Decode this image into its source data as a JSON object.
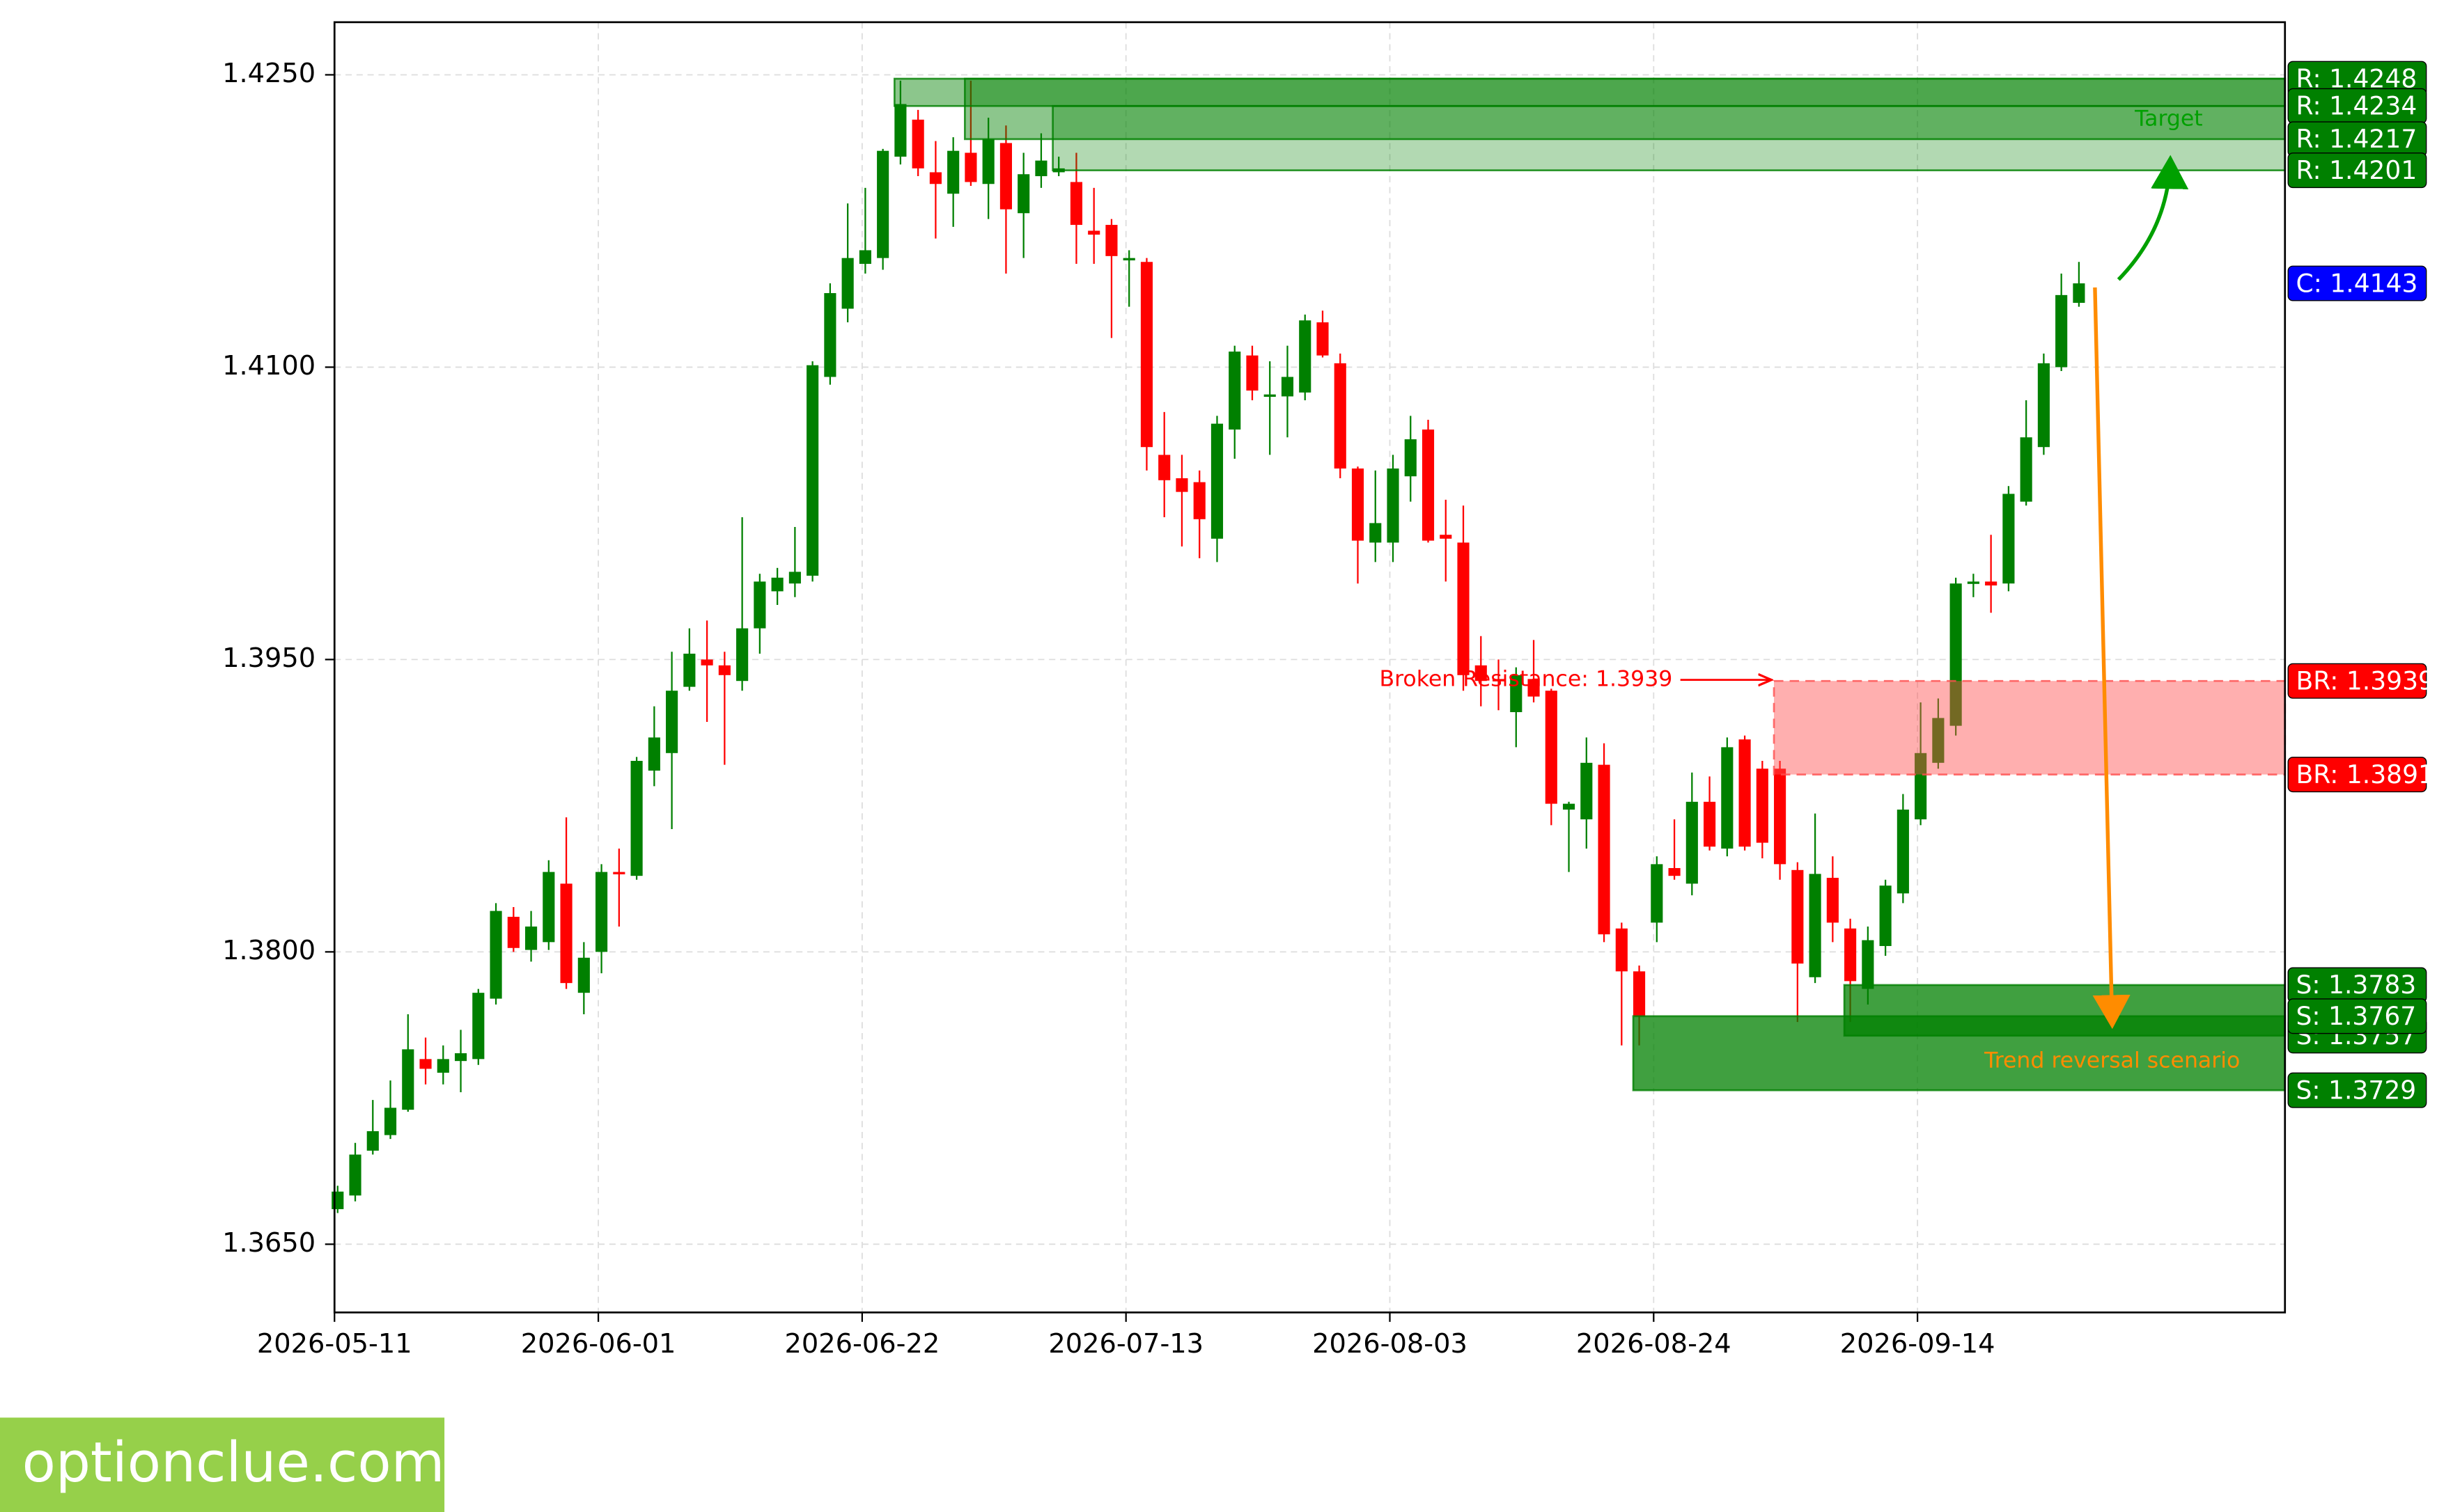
{
  "chart_data": {
    "type": "candlestick",
    "categories": [
      "2026-05-11",
      null,
      null,
      null,
      null,
      null,
      null,
      null,
      null,
      null,
      null,
      null,
      null,
      null,
      null,
      "2026-06-01",
      null,
      null,
      null,
      null,
      null,
      null,
      null,
      null,
      null,
      null,
      null,
      null,
      null,
      null,
      "2026-06-22",
      null,
      null,
      null,
      null,
      null,
      null,
      null,
      null,
      null,
      null,
      null,
      null,
      null,
      null,
      "2026-07-13",
      null,
      null,
      null,
      null,
      null,
      null,
      null,
      null,
      null,
      null,
      null,
      null,
      null,
      null,
      "2026-08-03",
      null,
      null,
      null,
      null,
      null,
      null,
      null,
      null,
      null,
      null,
      null,
      null,
      null,
      null,
      "2026-08-24",
      null,
      null,
      null,
      null,
      null,
      null,
      null,
      null,
      null,
      null,
      null,
      null,
      null,
      null,
      "2026-09-14",
      null,
      null,
      null,
      null,
      null,
      null,
      null,
      null,
      null
    ],
    "open": [
      1.3668,
      1.3675,
      1.3698,
      1.3706,
      1.3719,
      1.3745,
      1.3738,
      1.3744,
      1.3745,
      1.3776,
      1.3818,
      1.3801,
      1.3805,
      1.3835,
      1.3779,
      1.38,
      1.3841,
      1.3839,
      1.3893,
      1.3902,
      1.3936,
      1.395,
      1.3947,
      1.3939,
      1.3966,
      1.3985,
      1.3989,
      1.3993,
      1.4095,
      1.413,
      1.4153,
      1.4156,
      1.4208,
      1.4227,
      1.42,
      1.4189,
      1.421,
      1.4194,
      1.4215,
      1.4179,
      1.4198,
      1.42,
      1.4195,
      1.417,
      1.4173,
      1.4155,
      1.4154,
      1.4055,
      1.4043,
      1.4041,
      1.4012,
      1.4068,
      1.4106,
      1.4085,
      1.4085,
      1.4087,
      1.4123,
      1.4102,
      1.4048,
      1.401,
      1.401,
      1.4044,
      1.4068,
      1.4014,
      1.401,
      1.3947,
      1.394,
      1.3923,
      1.394,
      1.3934,
      1.3873,
      1.3868,
      1.3896,
      1.3812,
      1.379,
      1.3815,
      1.3843,
      1.3835,
      1.3877,
      1.3853,
      1.3909,
      1.3894,
      1.3894,
      1.3842,
      1.3787,
      1.3838,
      1.3812,
      1.3781,
      1.3803,
      1.383,
      1.3868,
      1.3897,
      1.3916,
      1.3989,
      1.399,
      1.3989,
      1.4031,
      1.4059,
      1.41,
      1.4133
    ],
    "high": [
      1.368,
      1.3702,
      1.3724,
      1.3734,
      1.3768,
      1.3756,
      1.3752,
      1.376,
      1.3781,
      1.3825,
      1.3823,
      1.3821,
      1.3847,
      1.3869,
      1.3805,
      1.3845,
      1.3853,
      1.39,
      1.3926,
      1.3954,
      1.3966,
      1.397,
      1.3954,
      1.4023,
      1.3994,
      1.3997,
      1.4018,
      1.4103,
      1.4143,
      1.4184,
      1.4192,
      1.4212,
      1.4247,
      1.4232,
      1.4216,
      1.4218,
      1.4247,
      1.4228,
      1.4224,
      1.421,
      1.422,
      1.4208,
      1.421,
      1.4192,
      1.4176,
      1.416,
      1.4156,
      1.4077,
      1.4055,
      1.4047,
      1.4075,
      1.4111,
      1.4111,
      1.4103,
      1.4111,
      1.4127,
      1.4129,
      1.4107,
      1.4049,
      1.4047,
      1.4055,
      1.4075,
      1.4073,
      1.4032,
      1.4029,
      1.3962,
      1.395,
      1.3946,
      1.396,
      1.3935,
      1.3877,
      1.391,
      1.3907,
      1.3815,
      1.3793,
      1.3849,
      1.3868,
      1.3892,
      1.389,
      1.391,
      1.3911,
      1.3898,
      1.3898,
      1.3846,
      1.3871,
      1.3849,
      1.3817,
      1.3813,
      1.3837,
      1.3881,
      1.3928,
      1.393,
      1.3992,
      1.3994,
      1.4014,
      1.4039,
      1.4083,
      1.4107,
      1.4148,
      1.4154
    ],
    "low": [
      1.3666,
      1.3672,
      1.3696,
      1.3704,
      1.3718,
      1.3732,
      1.3732,
      1.3728,
      1.3742,
      1.3773,
      1.38,
      1.3795,
      1.3801,
      1.3781,
      1.3768,
      1.3789,
      1.3813,
      1.3837,
      1.3885,
      1.3863,
      1.3934,
      1.3918,
      1.3896,
      1.3934,
      1.3953,
      1.3978,
      1.3982,
      1.399,
      1.4091,
      1.4123,
      1.4148,
      1.415,
      1.4204,
      1.4198,
      1.4166,
      1.4172,
      1.4193,
      1.4176,
      1.4148,
      1.4156,
      1.4192,
      1.4198,
      1.4153,
      1.4153,
      1.4115,
      1.4131,
      1.4047,
      1.4023,
      1.4008,
      1.4002,
      1.4,
      1.4053,
      1.4083,
      1.4055,
      1.4064,
      1.4083,
      1.4105,
      1.4043,
      1.3989,
      1.4,
      1.4,
      1.4031,
      1.401,
      1.399,
      1.3934,
      1.3926,
      1.3924,
      1.3905,
      1.3928,
      1.3865,
      1.3841,
      1.3853,
      1.3805,
      1.3752,
      1.3752,
      1.3805,
      1.3837,
      1.3829,
      1.3852,
      1.3849,
      1.3852,
      1.3848,
      1.3837,
      1.3764,
      1.3784,
      1.3805,
      1.3764,
      1.3773,
      1.3798,
      1.3825,
      1.3865,
      1.3894,
      1.3911,
      1.3982,
      1.3974,
      1.3985,
      1.4029,
      1.4055,
      1.4098,
      1.4131
    ],
    "close": [
      1.3677,
      1.3696,
      1.3708,
      1.372,
      1.375,
      1.374,
      1.3745,
      1.3748,
      1.3779,
      1.3821,
      1.3802,
      1.3813,
      1.3841,
      1.3784,
      1.3797,
      1.3841,
      1.384,
      1.3898,
      1.391,
      1.3934,
      1.3953,
      1.3947,
      1.3942,
      1.3966,
      1.399,
      1.3992,
      1.3995,
      1.4101,
      1.4138,
      1.4156,
      1.416,
      1.4211,
      1.4235,
      1.4202,
      1.4194,
      1.4211,
      1.4195,
      1.4217,
      1.4181,
      1.4199,
      1.4206,
      1.4202,
      1.4173,
      1.4168,
      1.4157,
      1.4156,
      1.4059,
      1.4042,
      1.4036,
      1.4022,
      1.4071,
      1.4108,
      1.4088,
      1.4086,
      1.4095,
      1.4124,
      1.4106,
      1.4048,
      1.4011,
      1.402,
      1.4048,
      1.4063,
      1.4011,
      1.4012,
      1.3942,
      1.3939,
      1.3939,
      1.3942,
      1.3931,
      1.3876,
      1.3876,
      1.3897,
      1.3809,
      1.379,
      1.3767,
      1.3845,
      1.3839,
      1.3877,
      1.3854,
      1.3905,
      1.3854,
      1.3856,
      1.3845,
      1.3794,
      1.384,
      1.3815,
      1.3785,
      1.3806,
      1.3834,
      1.3873,
      1.3902,
      1.392,
      1.3989,
      1.399,
      1.3988,
      1.4035,
      1.4064,
      1.4102,
      1.4137,
      1.4143
    ],
    "up_color": "#008000",
    "down_color": "#ff0000",
    "ylim": [
      1.3615,
      1.4277
    ],
    "yticks": [
      {
        "value": 1.365,
        "label": "1.3650"
      },
      {
        "value": 1.38,
        "label": "1.3800"
      },
      {
        "value": 1.395,
        "label": "1.3950"
      },
      {
        "value": 1.41,
        "label": "1.4100"
      },
      {
        "value": 1.425,
        "label": "1.4250"
      }
    ],
    "grid": true,
    "zones": [
      {
        "start": 32,
        "top": 1.4248,
        "bottom": 1.4234,
        "color": "#008000",
        "opacity": 0.45
      },
      {
        "start": 36,
        "top": 1.4248,
        "bottom": 1.4217,
        "color": "#008000",
        "opacity": 0.45
      },
      {
        "start": 41,
        "top": 1.4234,
        "bottom": 1.4201,
        "color": "#008000",
        "opacity": 0.3
      },
      {
        "start": 82,
        "top": 1.3939,
        "bottom": 1.3891,
        "color": "#ff4d4d",
        "opacity": 0.45,
        "dashed": true
      },
      {
        "start": 74,
        "top": 1.3767,
        "bottom": 1.3729,
        "color": "#008000",
        "opacity": 0.75
      },
      {
        "start": 86,
        "top": 1.3783,
        "bottom": 1.3757,
        "color": "#008000",
        "opacity": 0.75
      }
    ],
    "levels": [
      {
        "label": "R: 1.4248",
        "value": 1.4248,
        "color": "#008000"
      },
      {
        "label": "R: 1.4234",
        "value": 1.4234,
        "color": "#008000"
      },
      {
        "label": "R: 1.4217",
        "value": 1.4217,
        "color": "#008000"
      },
      {
        "label": "R: 1.4201",
        "value": 1.4201,
        "color": "#008000"
      },
      {
        "label": "C: 1.4143",
        "value": 1.4143,
        "color": "#0000ff"
      },
      {
        "label": "BR: 1.3939",
        "value": 1.3939,
        "color": "#ff0000"
      },
      {
        "label": "BR: 1.3891",
        "value": 1.3891,
        "color": "#ff0000"
      },
      {
        "label": "S: 1.3757",
        "value": 1.3757,
        "color": "#008000"
      },
      {
        "label": "S: 1.3783",
        "value": 1.3783,
        "color": "#008000"
      },
      {
        "label": "S: 1.3767",
        "value": 1.3767,
        "color": "#008000"
      },
      {
        "label": "S: 1.3729",
        "value": 1.3729,
        "color": "#008000"
      }
    ],
    "annotations": [
      {
        "text": "Broken Resistance: 1.3939",
        "color": "#ff0000"
      },
      {
        "text": "Target",
        "color": "#00a000"
      },
      {
        "text": "Trend reversal scenario",
        "color": "#ff8c00"
      }
    ],
    "watermark": "optionclue.com"
  }
}
